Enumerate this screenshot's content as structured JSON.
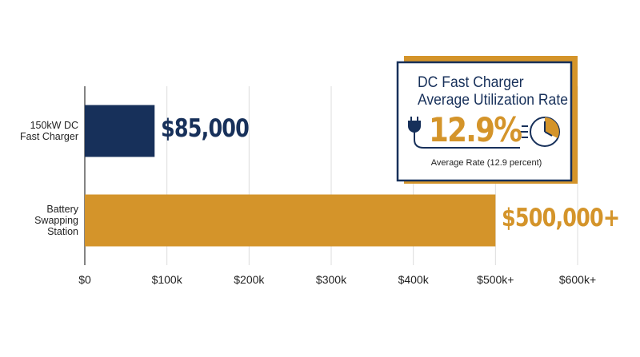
{
  "chart_data": {
    "type": "hbar",
    "categories": [
      "150kW DC Fast Charger",
      "Battery Swapping Station"
    ],
    "values": [
      85000,
      500000
    ],
    "value_labels": [
      "$85,000",
      "$500,000+"
    ],
    "colors": [
      "#17305a",
      "#d4942a"
    ],
    "xlim": [
      0,
      600000
    ],
    "xticks": [
      {
        "value": 0,
        "label": "$0"
      },
      {
        "value": 100000,
        "label": "$100k"
      },
      {
        "value": 200000,
        "label": "$200k"
      },
      {
        "value": 300000,
        "label": "$300k"
      },
      {
        "value": 400000,
        "label": "$400k"
      },
      {
        "value": 500000,
        "label": "$500k+"
      },
      {
        "value": 600000,
        "label": "$600k+"
      }
    ],
    "grid": true,
    "inset": {
      "title_lines": [
        "DC Fast Charger",
        "Average Utilization Rate"
      ],
      "value": "12.9%",
      "caption": "Average Rate (12.9 percent)"
    }
  }
}
